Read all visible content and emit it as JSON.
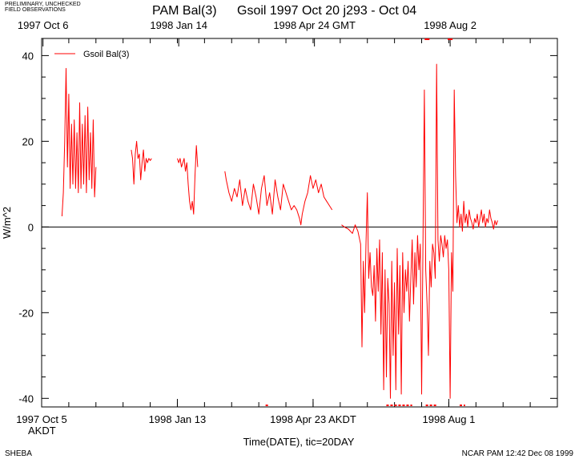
{
  "header": {
    "disclaimer_line1": "PRELIMINARY, UNCHECKED",
    "disclaimer_line2": "FIELD OBSERVATIONS",
    "title_left": "PAM Bal(3)",
    "title_right": "Gsoil 1997 Oct 20 j293 - Oct 04"
  },
  "footer": {
    "left": "SHEBA",
    "right": "NCAR PAM 12:42 Dec 08 1999"
  },
  "chart_data": {
    "type": "line",
    "title": "Gsoil 1997 Oct 20 j293 - Oct 04",
    "xlabel": "Time(DATE), tic=20DAY",
    "ylabel": "W/m^2",
    "ylim": [
      -42,
      44
    ],
    "xlim_days": [
      0,
      380
    ],
    "x_units": "days since 1997 Oct 5 00:00 AKDT",
    "y_ticks": [
      -40,
      -20,
      0,
      20,
      40
    ],
    "y_tick_labels": [
      "-40",
      "-20",
      "0",
      "20",
      "40"
    ],
    "x_minor_tick_interval_days": 20,
    "top_axis_labels": [
      {
        "day": 1,
        "text": "1997 Oct  6"
      },
      {
        "day": 101,
        "text": "1998 Jan 14"
      },
      {
        "day": 201,
        "text": "1998 Apr 24 GMT"
      },
      {
        "day": 301,
        "text": "1998 Aug  2"
      }
    ],
    "bottom_axis_labels": [
      {
        "day": 0,
        "text": "1997 Oct  5"
      },
      {
        "day": 100,
        "text": "1998 Jan 13"
      },
      {
        "day": 200,
        "text": "1998 Apr 23 AKDT"
      },
      {
        "day": 300,
        "text": "1998 Aug  1"
      }
    ],
    "bottom_axis_tz": "AKDT",
    "zero_line": true,
    "legend": {
      "position": "top-left",
      "entries": [
        "Gsoil Bal(3)"
      ]
    },
    "series": [
      {
        "name": "Gsoil Bal(3)",
        "color": "#ff0000",
        "segments": [
          [
            [
              15,
              2.5
            ],
            [
              16,
              8
            ],
            [
              17,
              20
            ],
            [
              18,
              37
            ],
            [
              19,
              14
            ],
            [
              20,
              31
            ],
            [
              21,
              9
            ],
            [
              22,
              24
            ],
            [
              23,
              10
            ],
            [
              24,
              25
            ],
            [
              25,
              9
            ],
            [
              26,
              22
            ],
            [
              27,
              8
            ],
            [
              28,
              29
            ],
            [
              29,
              9
            ],
            [
              30,
              24
            ],
            [
              31,
              10
            ],
            [
              32,
              26
            ],
            [
              33,
              8
            ],
            [
              34,
              28
            ],
            [
              35,
              11
            ],
            [
              36,
              22
            ],
            [
              37,
              9
            ],
            [
              38,
              25
            ],
            [
              39,
              7
            ],
            [
              40,
              14
            ]
          ],
          [
            [
              66,
              18
            ],
            [
              67,
              16
            ],
            [
              68,
              10
            ],
            [
              69,
              17
            ],
            [
              70,
              20
            ],
            [
              71,
              16
            ],
            [
              72,
              17
            ],
            [
              73,
              11
            ],
            [
              74,
              15
            ],
            [
              75,
              18
            ],
            [
              76,
              13
            ],
            [
              77,
              16
            ],
            [
              78,
              15
            ],
            [
              79,
              16
            ],
            [
              80,
              15.5
            ],
            [
              81,
              16
            ]
          ],
          [
            [
              100,
              16
            ],
            [
              101,
              15
            ],
            [
              102,
              16
            ],
            [
              103,
              14
            ],
            [
              104,
              15
            ],
            [
              105,
              16
            ],
            [
              106,
              13
            ],
            [
              107,
              15
            ],
            [
              108,
              10
            ],
            [
              109,
              6
            ],
            [
              110,
              4
            ],
            [
              111,
              6
            ],
            [
              112,
              3
            ],
            [
              113,
              12
            ],
            [
              114,
              19
            ],
            [
              115,
              14
            ]
          ],
          [
            [
              135,
              13
            ],
            [
              136,
              11
            ],
            [
              138,
              8
            ],
            [
              140,
              6
            ],
            [
              142,
              9
            ],
            [
              144,
              7
            ],
            [
              146,
              11
            ],
            [
              148,
              5
            ],
            [
              150,
              9
            ],
            [
              152,
              6
            ],
            [
              154,
              4
            ],
            [
              156,
              10
            ],
            [
              158,
              7
            ],
            [
              160,
              3
            ],
            [
              162,
              9
            ],
            [
              164,
              12
            ],
            [
              166,
              5
            ],
            [
              168,
              8
            ],
            [
              170,
              3
            ],
            [
              172,
              11
            ],
            [
              174,
              7
            ],
            [
              176,
              4
            ],
            [
              178,
              10
            ],
            [
              180,
              8
            ],
            [
              182,
              6
            ],
            [
              184,
              4
            ],
            [
              186,
              5
            ],
            [
              188,
              4
            ],
            [
              190,
              2
            ],
            [
              191,
              0.5
            ],
            [
              192,
              3
            ],
            [
              194,
              6
            ],
            [
              196,
              8
            ],
            [
              198,
              12
            ],
            [
              200,
              9
            ],
            [
              202,
              11
            ],
            [
              204,
              8
            ],
            [
              206,
              10
            ],
            [
              208,
              7
            ],
            [
              210,
              6
            ],
            [
              212,
              5
            ],
            [
              214,
              4
            ]
          ],
          [
            [
              221,
              0.5
            ],
            [
              223,
              0
            ],
            [
              226,
              -0.5
            ],
            [
              229,
              -1.5
            ],
            [
              231,
              0.5
            ],
            [
              233,
              -1
            ],
            [
              235,
              -4
            ],
            [
              236,
              -28
            ],
            [
              237,
              -8
            ],
            [
              238,
              -20
            ],
            [
              239,
              -4
            ],
            [
              240,
              8
            ],
            [
              241,
              -12
            ],
            [
              242,
              -6
            ],
            [
              243,
              -14
            ],
            [
              244,
              -16
            ],
            [
              245,
              -9
            ],
            [
              246,
              -22
            ],
            [
              247,
              -5
            ],
            [
              248,
              -15
            ],
            [
              249,
              -3
            ],
            [
              250,
              -25
            ],
            [
              251,
              -6
            ],
            [
              252,
              -38
            ],
            [
              253,
              -10
            ],
            [
              254,
              -35
            ],
            [
              255,
              -12
            ],
            [
              256,
              -18
            ],
            [
              257,
              -40
            ],
            [
              258,
              -8
            ],
            [
              259,
              -30
            ],
            [
              260,
              -13
            ],
            [
              261,
              -38
            ],
            [
              262,
              -5
            ],
            [
              263,
              -25
            ],
            [
              264,
              -9
            ],
            [
              265,
              -39
            ],
            [
              266,
              -6
            ],
            [
              267,
              -20
            ],
            [
              268,
              -10
            ],
            [
              269,
              -15
            ],
            [
              270,
              -8
            ],
            [
              271,
              -22
            ],
            [
              272,
              -12
            ],
            [
              273,
              -3
            ],
            [
              274,
              -18
            ],
            [
              275,
              -6
            ],
            [
              276,
              -14
            ],
            [
              277,
              -2
            ],
            [
              278,
              -10
            ],
            [
              279,
              -4
            ],
            [
              280,
              -39
            ],
            [
              281,
              -3
            ],
            [
              282,
              32
            ],
            [
              283,
              -10
            ],
            [
              284,
              -18
            ],
            [
              285,
              -30
            ],
            [
              286,
              -8
            ],
            [
              287,
              -14
            ],
            [
              288,
              -4
            ],
            [
              289,
              -6
            ],
            [
              290,
              -12
            ],
            [
              291,
              38
            ],
            [
              292,
              -3
            ],
            [
              293,
              -8
            ],
            [
              294,
              -2
            ],
            [
              295,
              -4
            ],
            [
              296,
              -7
            ],
            [
              297,
              -2
            ],
            [
              298,
              -5
            ],
            [
              299,
              -3
            ],
            [
              300,
              -10
            ],
            [
              301,
              -40
            ],
            [
              302,
              -6
            ],
            [
              303,
              -15
            ],
            [
              304,
              32
            ],
            [
              305,
              12
            ],
            [
              306,
              1
            ],
            [
              307,
              5
            ],
            [
              308,
              0
            ],
            [
              309,
              3
            ],
            [
              310,
              -1
            ],
            [
              311,
              6
            ],
            [
              312,
              1
            ],
            [
              313,
              3
            ],
            [
              314,
              0
            ],
            [
              315,
              4
            ],
            [
              316,
              2
            ],
            [
              317,
              1
            ],
            [
              318,
              -0.5
            ],
            [
              319,
              2
            ],
            [
              320,
              1
            ],
            [
              321,
              3
            ],
            [
              322,
              0
            ],
            [
              323,
              2
            ],
            [
              324,
              4
            ],
            [
              325,
              1
            ],
            [
              326,
              3
            ],
            [
              327,
              0
            ],
            [
              328,
              2
            ],
            [
              329,
              1
            ],
            [
              330,
              4
            ],
            [
              331,
              2
            ],
            [
              332,
              1
            ],
            [
              333,
              -0.5
            ],
            [
              334,
              1.5
            ],
            [
              335,
              0.5
            ],
            [
              336,
              1.5
            ]
          ]
        ]
      }
    ],
    "out_of_range_markers": {
      "top_days": [
        284,
        301
      ],
      "bottom_range_days": [
        [
          165,
          167
        ],
        [
          254,
          273
        ],
        [
          283,
          291
        ],
        [
          308,
          312
        ]
      ]
    }
  }
}
